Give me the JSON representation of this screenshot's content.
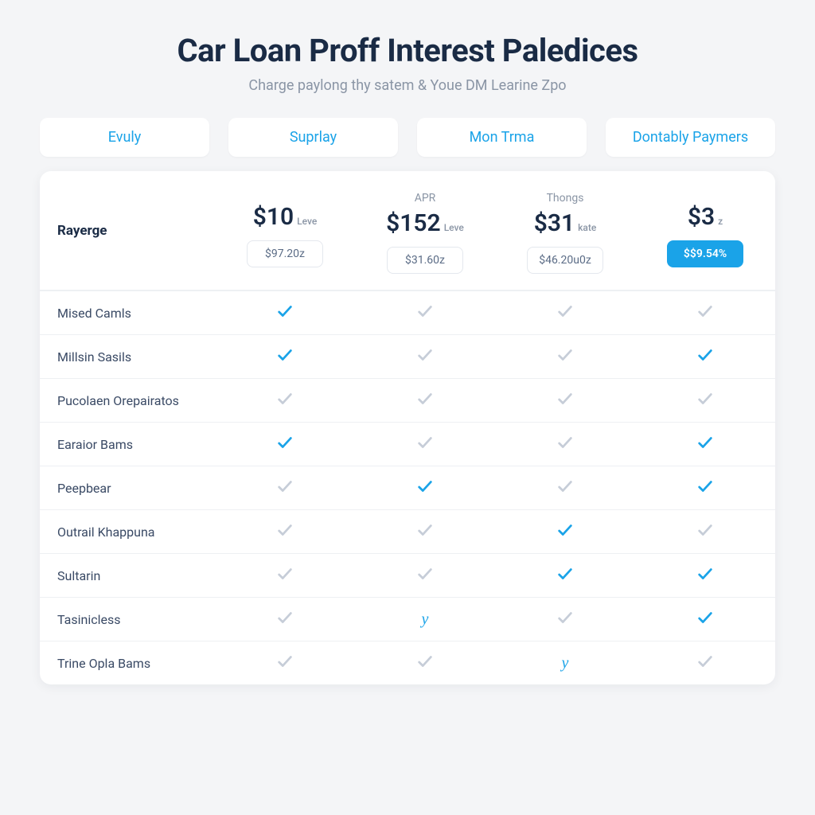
{
  "colors": {
    "page_bg": "#f4f5f7",
    "card_bg": "#ffffff",
    "text_primary": "#1a2b45",
    "text_muted": "#8a95a5",
    "accent": "#1aa3e8",
    "divider": "#eef0f3",
    "check_muted": "#c6cdd8",
    "check_active": "#1aa3e8",
    "pill_border": "#e4e8ee"
  },
  "header": {
    "title": "Car Loan Proff Interest Paledices",
    "subtitle": "Charge paylong thy satem & Youe DM Learine Zpo"
  },
  "tabs": [
    {
      "label": "Evuly"
    },
    {
      "label": "Suprlay"
    },
    {
      "label": "Mon Trma"
    },
    {
      "label": "Dontably Paymers"
    }
  ],
  "table": {
    "row_label": "Rayerge",
    "plans": [
      {
        "top_label": "",
        "price": "$10",
        "price_suffix": "Leve",
        "sub": "$97.20z",
        "cta": false
      },
      {
        "top_label": "APR",
        "price": "$152",
        "price_suffix": "Leve",
        "sub": "$31.60z",
        "cta": false
      },
      {
        "top_label": "Thongs",
        "price": "$31",
        "price_suffix": "kate",
        "sub": "$46.20u0z",
        "cta": false
      },
      {
        "top_label": "",
        "price": "$3",
        "price_suffix": "z",
        "sub": "$$9.54%",
        "cta": true
      }
    ],
    "features": [
      {
        "label": "Mised Camls",
        "cells": [
          "active",
          "muted",
          "muted",
          "muted"
        ]
      },
      {
        "label": "Millsin Sasils",
        "cells": [
          "active",
          "muted",
          "muted",
          "active"
        ]
      },
      {
        "label": "Pucolaen Orepairatos",
        "cells": [
          "muted",
          "muted",
          "muted",
          "muted"
        ]
      },
      {
        "label": "Earaior Bams",
        "cells": [
          "active",
          "muted",
          "muted",
          "active"
        ]
      },
      {
        "label": "Peepbear",
        "cells": [
          "muted",
          "active",
          "muted",
          "active"
        ]
      },
      {
        "label": "Outrail Khappuna",
        "cells": [
          "muted",
          "muted",
          "active",
          "muted"
        ]
      },
      {
        "label": "Sultarin",
        "cells": [
          "muted",
          "muted",
          "active",
          "active"
        ]
      },
      {
        "label": "Tasinicless",
        "cells": [
          "muted",
          "glyph",
          "muted",
          "active"
        ]
      },
      {
        "label": "Trine Opla Bams",
        "cells": [
          "muted",
          "muted",
          "glyph",
          "muted"
        ]
      }
    ],
    "glyph_text": "y"
  }
}
